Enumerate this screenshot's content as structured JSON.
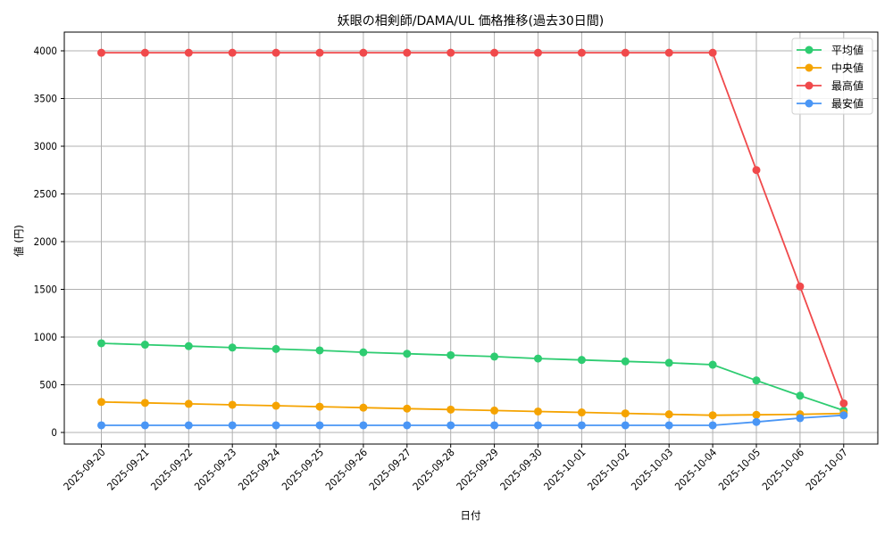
{
  "chart_data": {
    "type": "line",
    "title": "妖眼の相剣師/DAMA/UL 価格推移(過去30日間)",
    "xlabel": "日付",
    "ylabel": "値 (円)",
    "ylim": [
      -120,
      4180
    ],
    "yticks": [
      0,
      500,
      1000,
      1500,
      2000,
      2500,
      3000,
      3500,
      4000
    ],
    "grid": true,
    "legend_position": "upper right",
    "x": [
      "2025-09-20",
      "2025-09-21",
      "2025-09-22",
      "2025-09-23",
      "2025-09-24",
      "2025-09-25",
      "2025-09-26",
      "2025-09-27",
      "2025-09-28",
      "2025-09-29",
      "2025-09-30",
      "2025-10-01",
      "2025-10-02",
      "2025-10-03",
      "2025-10-04",
      "2025-10-05",
      "2025-10-06",
      "2025-10-07"
    ],
    "series": [
      {
        "name": "平均値",
        "color": "#2ecc71",
        "values": [
          935,
          920,
          905,
          890,
          875,
          860,
          840,
          825,
          810,
          795,
          775,
          760,
          745,
          730,
          710,
          545,
          385,
          230
        ]
      },
      {
        "name": "中央値",
        "color": "#f5a300",
        "values": [
          320,
          310,
          300,
          290,
          280,
          270,
          260,
          250,
          240,
          230,
          220,
          210,
          200,
          190,
          180,
          185,
          190,
          200
        ]
      },
      {
        "name": "最高値",
        "color": "#f0494b",
        "values": [
          3980,
          3980,
          3980,
          3980,
          3980,
          3980,
          3980,
          3980,
          3980,
          3980,
          3980,
          3980,
          3980,
          3980,
          3980,
          2750,
          1530,
          305
        ]
      },
      {
        "name": "最安値",
        "color": "#4a96f5",
        "values": [
          75,
          75,
          75,
          75,
          75,
          75,
          75,
          75,
          75,
          75,
          75,
          75,
          75,
          75,
          75,
          110,
          150,
          180
        ]
      }
    ]
  }
}
